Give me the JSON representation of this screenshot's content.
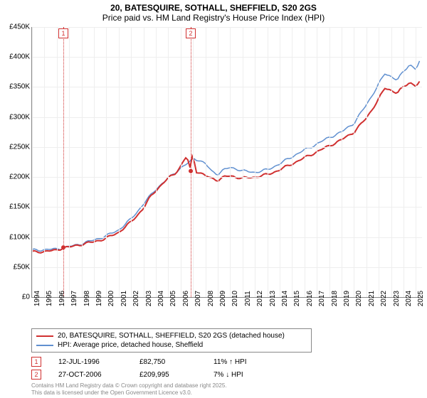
{
  "title": {
    "line1": "20, BATESQUIRE, SOTHALL, SHEFFIELD, S20 2GS",
    "line2": "Price paid vs. HM Land Registry's House Price Index (HPI)"
  },
  "chart": {
    "type": "line",
    "background_color": "#ffffff",
    "grid_color": "#eeeeee",
    "axis_color": "#888888",
    "x": {
      "min": 1994,
      "max": 2025.5,
      "ticks": [
        1994,
        1995,
        1996,
        1997,
        1998,
        1999,
        2000,
        2001,
        2002,
        2003,
        2004,
        2005,
        2006,
        2007,
        2008,
        2009,
        2010,
        2011,
        2012,
        2013,
        2014,
        2015,
        2016,
        2017,
        2018,
        2019,
        2020,
        2021,
        2022,
        2023,
        2024,
        2025
      ]
    },
    "y": {
      "min": 0,
      "max": 450000,
      "tick_step": 50000,
      "labels": [
        "£0",
        "£50K",
        "£100K",
        "£150K",
        "£200K",
        "£250K",
        "£300K",
        "£350K",
        "£400K",
        "£450K"
      ]
    },
    "series": [
      {
        "name": "price_paid",
        "label": "20, BATESQUIRE, SOTHALL, SHEFFIELD, S20 2GS (detached house)",
        "color": "#d03030",
        "line_width": 2,
        "points": [
          [
            1994,
            75000
          ],
          [
            1995,
            76000
          ],
          [
            1996,
            78000
          ],
          [
            1996.53,
            82750
          ],
          [
            1997,
            83000
          ],
          [
            1998,
            88000
          ],
          [
            1999,
            92000
          ],
          [
            2000,
            98000
          ],
          [
            2001,
            108000
          ],
          [
            2002,
            125000
          ],
          [
            2003,
            148000
          ],
          [
            2003.5,
            165000
          ],
          [
            2004,
            178000
          ],
          [
            2004.5,
            188000
          ],
          [
            2005,
            198000
          ],
          [
            2005.5,
            205000
          ],
          [
            2006,
            218000
          ],
          [
            2006.5,
            235000
          ],
          [
            2006.82,
            209995
          ],
          [
            2007,
            245000
          ],
          [
            2007.2,
            210000
          ],
          [
            2007.5,
            208000
          ],
          [
            2008,
            202000
          ],
          [
            2008.5,
            198000
          ],
          [
            2009,
            195000
          ],
          [
            2009.5,
            200000
          ],
          [
            2010,
            202000
          ],
          [
            2010.5,
            200000
          ],
          [
            2011,
            198000
          ],
          [
            2012,
            200000
          ],
          [
            2013,
            204000
          ],
          [
            2014,
            212000
          ],
          [
            2015,
            222000
          ],
          [
            2016,
            232000
          ],
          [
            2017,
            242000
          ],
          [
            2018,
            252000
          ],
          [
            2019,
            262000
          ],
          [
            2020,
            275000
          ],
          [
            2021,
            298000
          ],
          [
            2022,
            330000
          ],
          [
            2022.5,
            348000
          ],
          [
            2023,
            345000
          ],
          [
            2023.5,
            340000
          ],
          [
            2024,
            350000
          ],
          [
            2024.5,
            358000
          ],
          [
            2025,
            352000
          ],
          [
            2025.3,
            358000
          ]
        ]
      },
      {
        "name": "hpi",
        "label": "HPI: Average price, detached house, Sheffield",
        "color": "#6090d0",
        "line_width": 1.5,
        "points": [
          [
            1994,
            78000
          ],
          [
            1995,
            79000
          ],
          [
            1996,
            80000
          ],
          [
            1997,
            84000
          ],
          [
            1998,
            89000
          ],
          [
            1999,
            95000
          ],
          [
            2000,
            102000
          ],
          [
            2001,
            112000
          ],
          [
            2002,
            130000
          ],
          [
            2003,
            155000
          ],
          [
            2004,
            180000
          ],
          [
            2005,
            198000
          ],
          [
            2006,
            215000
          ],
          [
            2006.82,
            226000
          ],
          [
            2007,
            232000
          ],
          [
            2007.5,
            228000
          ],
          [
            2008,
            222000
          ],
          [
            2008.5,
            210000
          ],
          [
            2009,
            205000
          ],
          [
            2009.5,
            212000
          ],
          [
            2010,
            216000
          ],
          [
            2010.5,
            214000
          ],
          [
            2011,
            210000
          ],
          [
            2012,
            208000
          ],
          [
            2013,
            212000
          ],
          [
            2014,
            222000
          ],
          [
            2015,
            234000
          ],
          [
            2016,
            245000
          ],
          [
            2017,
            255000
          ],
          [
            2018,
            266000
          ],
          [
            2019,
            275000
          ],
          [
            2020,
            290000
          ],
          [
            2021,
            320000
          ],
          [
            2022,
            355000
          ],
          [
            2022.5,
            372000
          ],
          [
            2023,
            368000
          ],
          [
            2023.5,
            362000
          ],
          [
            2024,
            375000
          ],
          [
            2024.5,
            388000
          ],
          [
            2025,
            380000
          ],
          [
            2025.3,
            392000
          ]
        ]
      }
    ],
    "sale_markers": [
      {
        "n": "1",
        "year": 1996.53,
        "price": 82750
      },
      {
        "n": "2",
        "year": 2006.82,
        "price": 209995
      }
    ]
  },
  "legend": {
    "items": [
      {
        "color": "#d03030",
        "label": "20, BATESQUIRE, SOTHALL, SHEFFIELD, S20 2GS (detached house)"
      },
      {
        "color": "#6090d0",
        "label": "HPI: Average price, detached house, Sheffield"
      }
    ]
  },
  "sales": [
    {
      "n": "1",
      "date": "12-JUL-1996",
      "price": "£82,750",
      "pct": "11% ↑ HPI"
    },
    {
      "n": "2",
      "date": "27-OCT-2006",
      "price": "£209,995",
      "pct": "7% ↓ HPI"
    }
  ],
  "footer": {
    "line1": "Contains HM Land Registry data © Crown copyright and database right 2025.",
    "line2": "This data is licensed under the Open Government Licence v3.0."
  }
}
